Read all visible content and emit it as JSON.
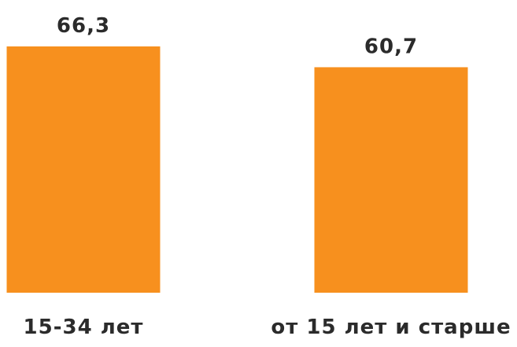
{
  "chart_data": {
    "type": "bar",
    "title": "",
    "xlabel": "",
    "ylabel": "",
    "categories": [
      "15-34 лет",
      "от 15 лет и старше"
    ],
    "values": [
      66.3,
      60.7
    ],
    "value_labels": [
      "66,3",
      "60,7"
    ],
    "grid": false,
    "legend": "none"
  },
  "colors": {
    "bar": "#F7901E",
    "text": "#2B2B2B",
    "background": "#FFFFFF"
  }
}
